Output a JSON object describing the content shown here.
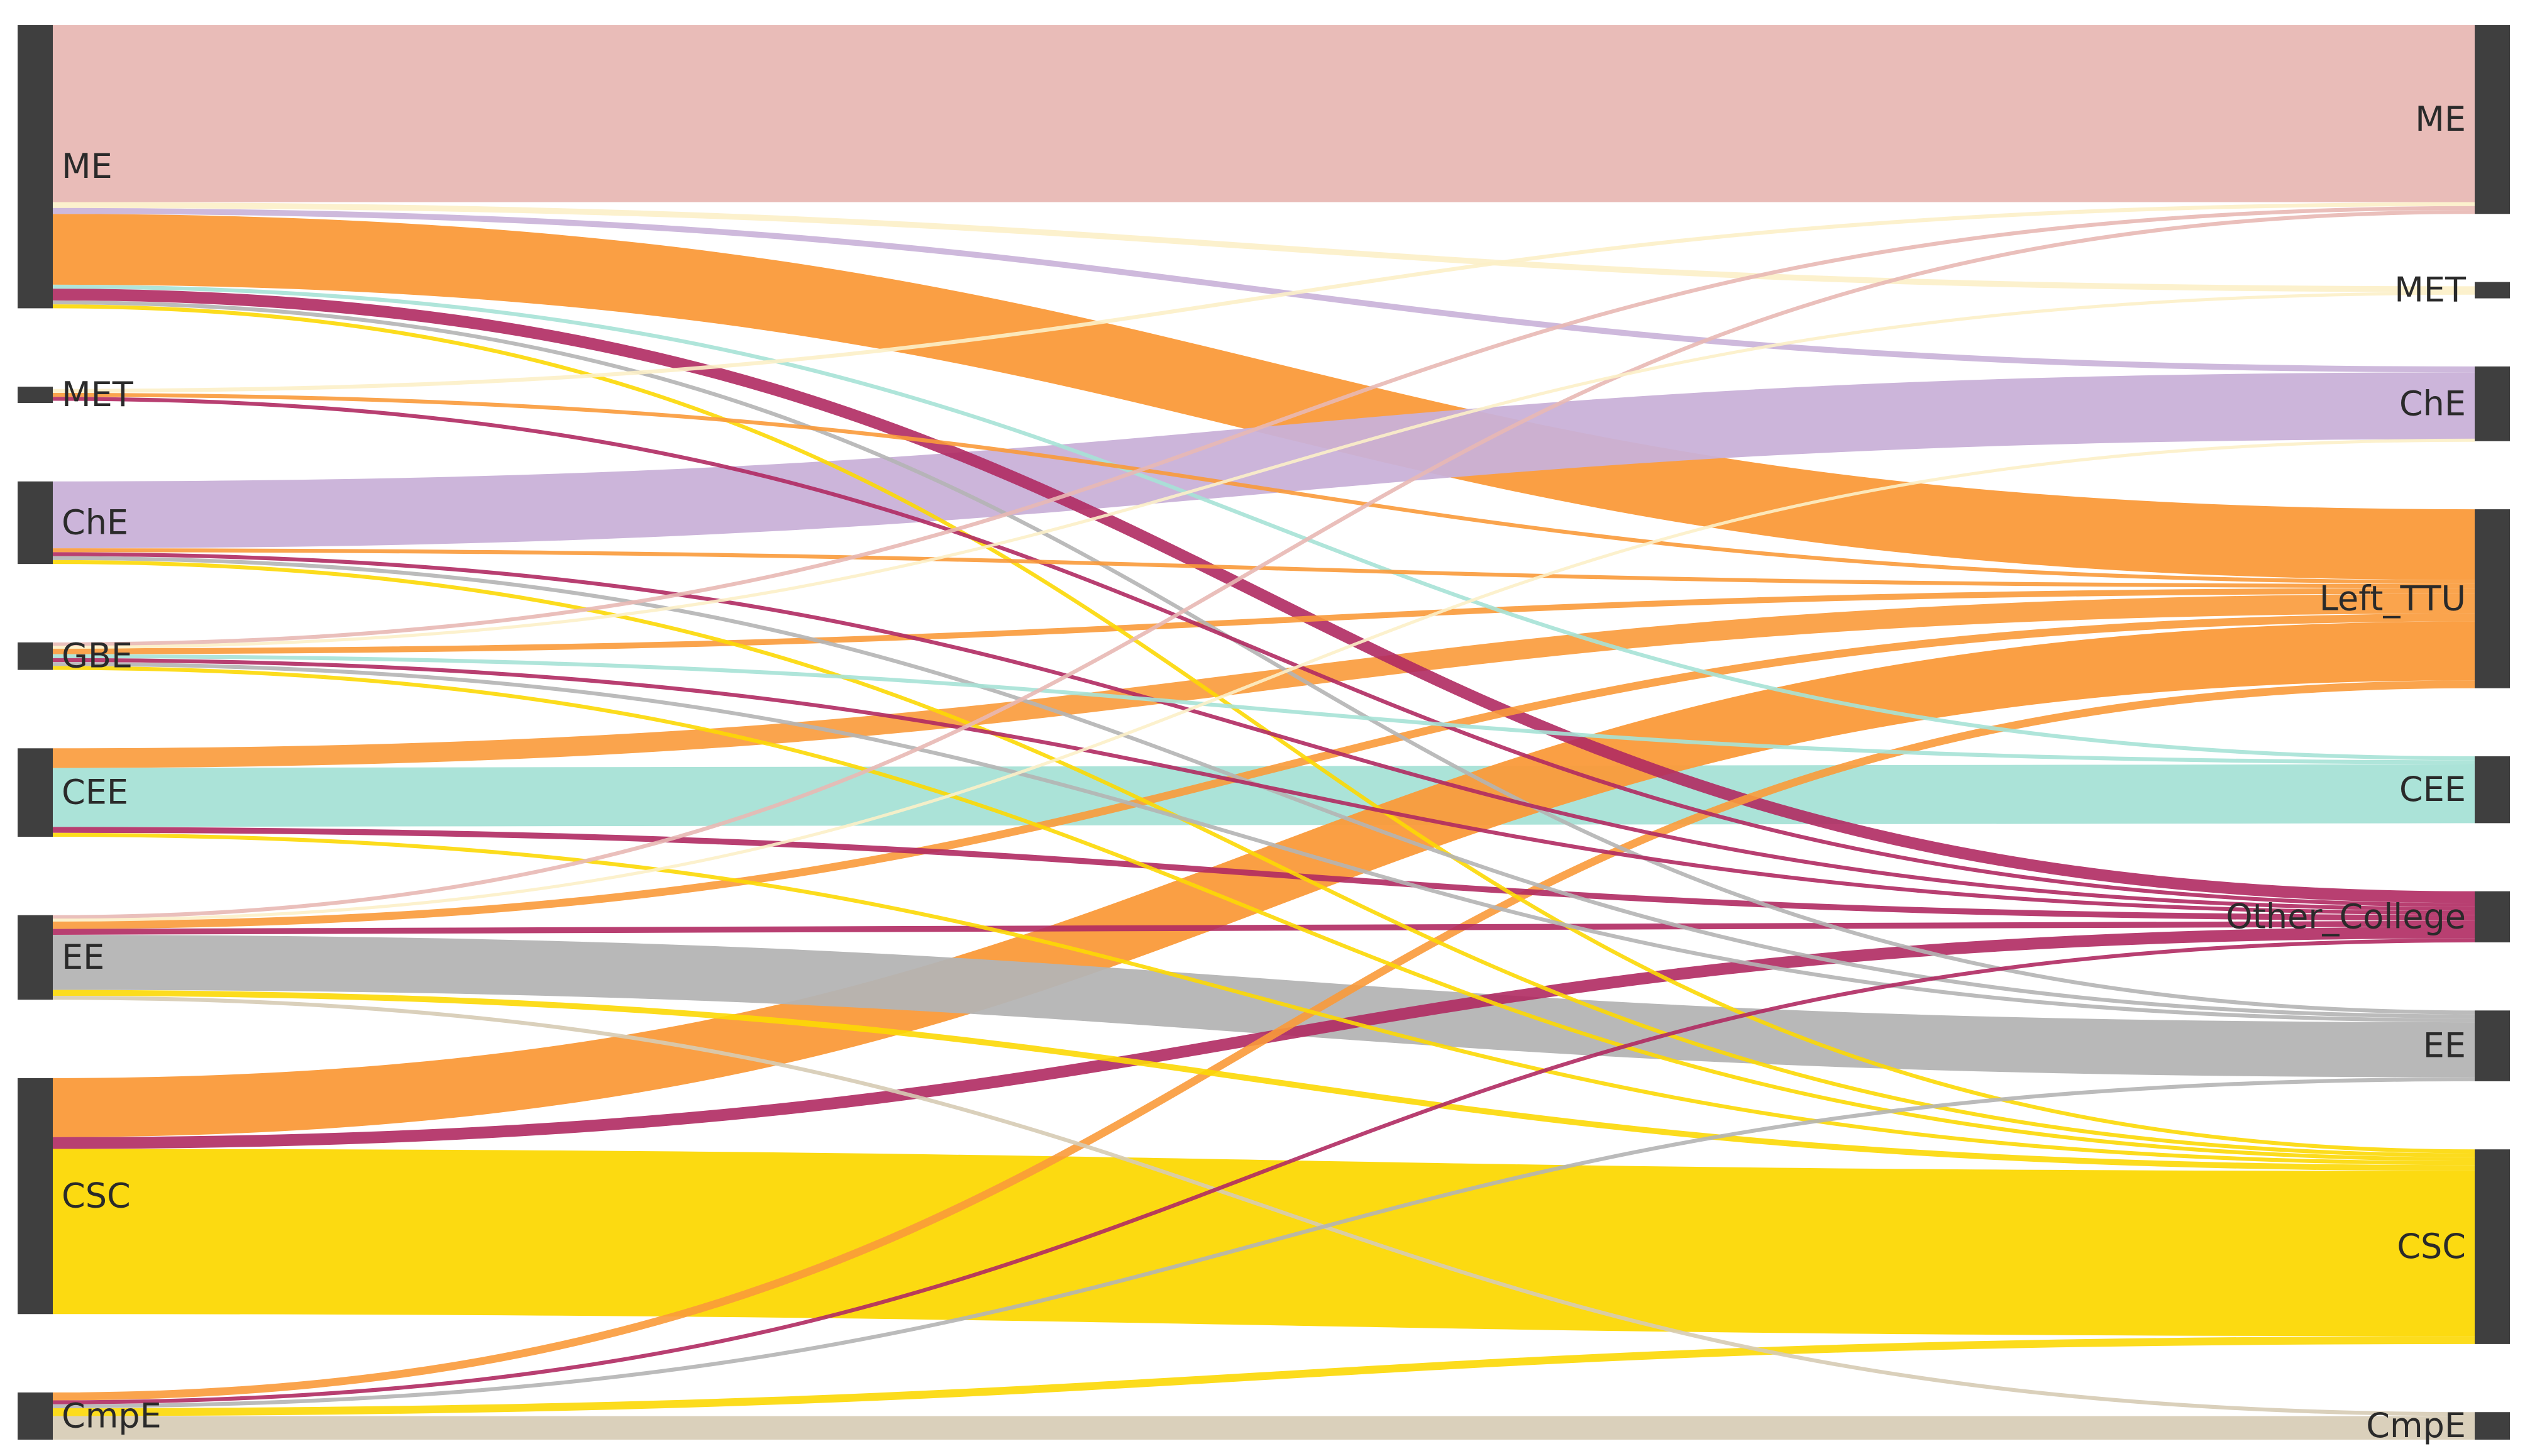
{
  "chart_data": {
    "type": "sankey",
    "left_nodes": [
      {
        "id": "L_ME",
        "label": "ME",
        "color": "#e8b8b4"
      },
      {
        "id": "L_MET",
        "label": "MET",
        "color": "#fcf0c8"
      },
      {
        "id": "L_ChE",
        "label": "ChE",
        "color": "#c9b1d8"
      },
      {
        "id": "L_GBE",
        "label": "GBE",
        "color": "#f6d9a8"
      },
      {
        "id": "L_CEE",
        "label": "CEE",
        "color": "#a6e2d6"
      },
      {
        "id": "L_EE",
        "label": "EE",
        "color": "#b4b4b4"
      },
      {
        "id": "L_CSC",
        "label": "CSC",
        "color": "#fcd804"
      },
      {
        "id": "L_CmpE",
        "label": "CmpE",
        "color": "#d6cbb4"
      }
    ],
    "right_nodes": [
      {
        "id": "R_ME",
        "label": "ME"
      },
      {
        "id": "R_MET",
        "label": "MET"
      },
      {
        "id": "R_ChE",
        "label": "ChE"
      },
      {
        "id": "R_Left_TTU",
        "label": "Left_TTU"
      },
      {
        "id": "R_CEE",
        "label": "CEE"
      },
      {
        "id": "R_Other_College",
        "label": "Other_College"
      },
      {
        "id": "R_EE",
        "label": "EE"
      },
      {
        "id": "R_CSC",
        "label": "CSC"
      },
      {
        "id": "R_CmpE",
        "label": "CmpE"
      }
    ],
    "links": [
      {
        "source": "L_ME",
        "target": "R_ME",
        "value": 90,
        "color": "#e8b8b4"
      },
      {
        "source": "L_ME",
        "target": "R_MET",
        "value": 3,
        "color": "#fcf0c8"
      },
      {
        "source": "L_ME",
        "target": "R_ChE",
        "value": 3,
        "color": "#c9b1d8"
      },
      {
        "source": "L_ME",
        "target": "R_Left_TTU",
        "value": 36,
        "color": "#fa9a3a"
      },
      {
        "source": "L_ME",
        "target": "R_CEE",
        "value": 2,
        "color": "#a6e2d6"
      },
      {
        "source": "L_ME",
        "target": "R_Other_College",
        "value": 6,
        "color": "#b02a62"
      },
      {
        "source": "L_ME",
        "target": "R_EE",
        "value": 2,
        "color": "#b4b4b4"
      },
      {
        "source": "L_ME",
        "target": "R_CSC",
        "value": 2,
        "color": "#fcd804"
      },
      {
        "source": "L_MET",
        "target": "R_ME",
        "value": 2,
        "color": "#fcf0c8"
      },
      {
        "source": "L_MET",
        "target": "R_Left_TTU",
        "value": 2,
        "color": "#fa9a3a"
      },
      {
        "source": "L_MET",
        "target": "R_Other_College",
        "value": 2,
        "color": "#b02a62"
      },
      {
        "source": "L_ChE",
        "target": "R_ChE",
        "value": 34,
        "color": "#c9b1d8"
      },
      {
        "source": "L_ChE",
        "target": "R_Left_TTU",
        "value": 2,
        "color": "#fa9a3a"
      },
      {
        "source": "L_ChE",
        "target": "R_Other_College",
        "value": 2,
        "color": "#b02a62"
      },
      {
        "source": "L_ChE",
        "target": "R_EE",
        "value": 2,
        "color": "#b4b4b4"
      },
      {
        "source": "L_ChE",
        "target": "R_CSC",
        "value": 2,
        "color": "#fcd804"
      },
      {
        "source": "L_GBE",
        "target": "R_ME",
        "value": 2,
        "color": "#e8b8b4"
      },
      {
        "source": "L_GBE",
        "target": "R_MET",
        "value": 1,
        "color": "#fcf0c8"
      },
      {
        "source": "L_GBE",
        "target": "R_Left_TTU",
        "value": 3,
        "color": "#fa9a3a"
      },
      {
        "source": "L_GBE",
        "target": "R_CEE",
        "value": 2,
        "color": "#a6e2d6"
      },
      {
        "source": "L_GBE",
        "target": "R_Other_College",
        "value": 2,
        "color": "#b02a62"
      },
      {
        "source": "L_GBE",
        "target": "R_EE",
        "value": 2,
        "color": "#b4b4b4"
      },
      {
        "source": "L_GBE",
        "target": "R_CSC",
        "value": 2,
        "color": "#fcd804"
      },
      {
        "source": "L_CEE",
        "target": "R_Left_TTU",
        "value": 10,
        "color": "#fa9a3a"
      },
      {
        "source": "L_CEE",
        "target": "R_CEE",
        "value": 30,
        "color": "#a6e2d6"
      },
      {
        "source": "L_CEE",
        "target": "R_Other_College",
        "value": 3,
        "color": "#b02a62"
      },
      {
        "source": "L_CEE",
        "target": "R_CSC",
        "value": 2,
        "color": "#fcd804"
      },
      {
        "source": "L_EE",
        "target": "R_ME",
        "value": 2,
        "color": "#e8b8b4"
      },
      {
        "source": "L_EE",
        "target": "R_ChE",
        "value": 1,
        "color": "#fcf0c8"
      },
      {
        "source": "L_EE",
        "target": "R_Left_TTU",
        "value": 4,
        "color": "#fa9a3a"
      },
      {
        "source": "L_EE",
        "target": "R_Other_College",
        "value": 3,
        "color": "#b02a62"
      },
      {
        "source": "L_EE",
        "target": "R_EE",
        "value": 28,
        "color": "#b4b4b4"
      },
      {
        "source": "L_EE",
        "target": "R_CSC",
        "value": 3,
        "color": "#fcd804"
      },
      {
        "source": "L_EE",
        "target": "R_CmpE",
        "value": 2,
        "color": "#d6cbb4"
      },
      {
        "source": "L_CSC",
        "target": "R_Left_TTU",
        "value": 30,
        "color": "#fa9a3a"
      },
      {
        "source": "L_CSC",
        "target": "R_Other_College",
        "value": 6,
        "color": "#b02a62"
      },
      {
        "source": "L_CSC",
        "target": "R_CSC",
        "value": 84,
        "color": "#fcd804"
      },
      {
        "source": "L_CmpE",
        "target": "R_Left_TTU",
        "value": 4,
        "color": "#fa9a3a"
      },
      {
        "source": "L_CmpE",
        "target": "R_Other_College",
        "value": 2,
        "color": "#b02a62"
      },
      {
        "source": "L_CmpE",
        "target": "R_EE",
        "value": 2,
        "color": "#b4b4b4"
      },
      {
        "source": "L_CmpE",
        "target": "R_CSC",
        "value": 4,
        "color": "#fcd804"
      },
      {
        "source": "L_CmpE",
        "target": "R_CmpE",
        "value": 12,
        "color": "#d6cbb4"
      }
    ],
    "node_bar_color": "#3f3f3f"
  }
}
